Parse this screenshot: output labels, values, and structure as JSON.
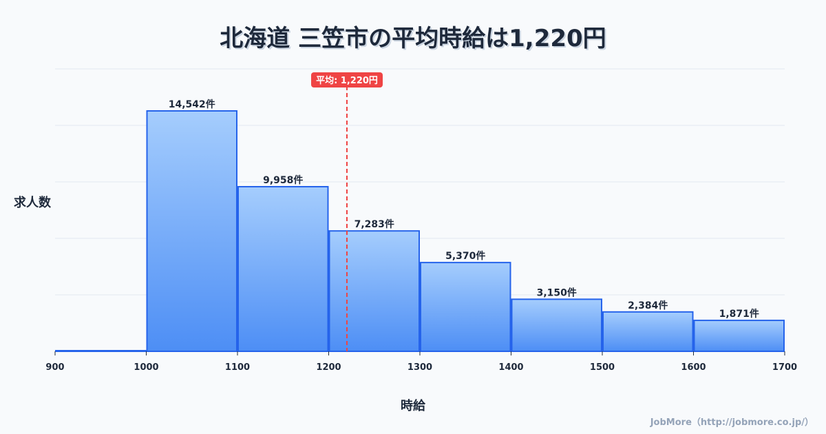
{
  "chart_data": {
    "type": "bar",
    "title": "北海道 三笠市の平均時給は1,220円",
    "xlabel": "時給",
    "ylabel": "求人数",
    "bins": [
      [
        900,
        1000
      ],
      [
        1000,
        1100
      ],
      [
        1100,
        1200
      ],
      [
        1200,
        1300
      ],
      [
        1300,
        1400
      ],
      [
        1400,
        1500
      ],
      [
        1500,
        1600
      ],
      [
        1600,
        1700
      ]
    ],
    "values": [
      0,
      14542,
      9958,
      7283,
      5370,
      3150,
      2384,
      1871
    ],
    "data_labels": [
      "",
      "14,542件",
      "9,958件",
      "7,283件",
      "5,370件",
      "3,150件",
      "2,384件",
      "1,871件"
    ],
    "x_ticks": [
      "900",
      "1000",
      "1100",
      "1200",
      "1300",
      "1400",
      "1500",
      "1600",
      "1700"
    ],
    "xlim": [
      900,
      1700
    ],
    "ylim": [
      0,
      17083
    ],
    "grid": true,
    "average": {
      "value": 1220,
      "label": "平均: 1,220円",
      "color": "#ef4444"
    },
    "bar_color_top": "#a5cdfd",
    "bar_color_bottom": "#4d8ef5",
    "bar_edge": "#2563eb"
  },
  "credit": "JobMore（http://jobmore.co.jp/）"
}
